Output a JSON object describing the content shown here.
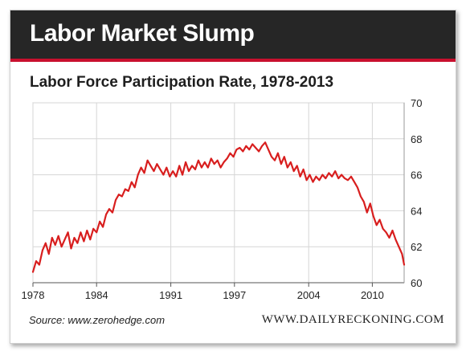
{
  "banner": {
    "title": "Labor Market Slump"
  },
  "footer": {
    "source": "Source: www.zerohedge.com",
    "brand": "WWW.DAILYRECKONING.COM"
  },
  "colors": {
    "line": "#d81e1e",
    "banner_bg": "#262626",
    "banner_accent": "#c8102e"
  },
  "chart_data": {
    "type": "line",
    "title": "Labor Force Participation Rate, 1978-2013",
    "xlabel": "",
    "ylabel": "",
    "xlim": [
      1978,
      2013
    ],
    "ylim": [
      60,
      70
    ],
    "x_ticks": [
      1978,
      1984,
      1991,
      1997,
      2004,
      2010
    ],
    "y_ticks": [
      60,
      62,
      64,
      66,
      68,
      70
    ],
    "y_axis_side": "right",
    "grid": true,
    "series": [
      {
        "x": [
          1978.0,
          1978.3,
          1978.6,
          1978.9,
          1979.2,
          1979.5,
          1979.8,
          1980.1,
          1980.4,
          1980.7,
          1981.0,
          1981.3,
          1981.6,
          1981.9,
          1982.2,
          1982.5,
          1982.8,
          1983.1,
          1983.4,
          1983.7,
          1984.0,
          1984.3,
          1984.6,
          1984.9,
          1985.2,
          1985.5,
          1985.8,
          1986.1,
          1986.4,
          1986.7,
          1987.0,
          1987.3,
          1987.6,
          1987.9,
          1988.2,
          1988.5,
          1988.8,
          1989.1,
          1989.4,
          1989.7,
          1990.0,
          1990.3,
          1990.6,
          1990.9,
          1991.2,
          1991.5,
          1991.8,
          1992.1,
          1992.4,
          1992.7,
          1993.0,
          1993.3,
          1993.6,
          1993.9,
          1994.2,
          1994.5,
          1994.8,
          1995.1,
          1995.4,
          1995.7,
          1996.0,
          1996.3,
          1996.6,
          1996.9,
          1997.2,
          1997.5,
          1997.8,
          1998.1,
          1998.4,
          1998.7,
          1999.0,
          1999.3,
          1999.6,
          1999.9,
          2000.2,
          2000.5,
          2000.8,
          2001.1,
          2001.4,
          2001.7,
          2002.0,
          2002.3,
          2002.6,
          2002.9,
          2003.2,
          2003.5,
          2003.8,
          2004.1,
          2004.4,
          2004.7,
          2005.0,
          2005.3,
          2005.6,
          2005.9,
          2006.2,
          2006.5,
          2006.8,
          2007.1,
          2007.4,
          2007.7,
          2008.0,
          2008.3,
          2008.6,
          2008.9,
          2009.2,
          2009.5,
          2009.8,
          2010.1,
          2010.4,
          2010.7,
          2011.0,
          2011.3,
          2011.6,
          2011.9,
          2012.2,
          2012.5,
          2012.8,
          2013.0
        ],
        "values": [
          60.6,
          61.2,
          61.0,
          61.8,
          62.2,
          61.6,
          62.5,
          62.1,
          62.6,
          62.0,
          62.4,
          62.8,
          61.9,
          62.5,
          62.2,
          62.8,
          62.3,
          62.9,
          62.4,
          63.0,
          62.8,
          63.4,
          63.1,
          63.8,
          64.1,
          63.9,
          64.6,
          64.9,
          64.8,
          65.2,
          65.1,
          65.6,
          65.3,
          66.0,
          66.4,
          66.1,
          66.8,
          66.5,
          66.2,
          66.6,
          66.3,
          66.0,
          66.4,
          65.9,
          66.2,
          65.9,
          66.5,
          66.0,
          66.7,
          66.2,
          66.5,
          66.3,
          66.8,
          66.4,
          66.7,
          66.4,
          66.9,
          66.6,
          66.8,
          66.4,
          66.7,
          66.9,
          67.2,
          67.0,
          67.4,
          67.5,
          67.3,
          67.6,
          67.4,
          67.7,
          67.5,
          67.3,
          67.6,
          67.8,
          67.4,
          67.0,
          66.8,
          67.2,
          66.6,
          67.0,
          66.4,
          66.7,
          66.2,
          66.5,
          65.9,
          66.3,
          65.7,
          66.0,
          65.6,
          65.9,
          65.7,
          66.0,
          65.8,
          66.1,
          65.9,
          66.2,
          65.8,
          66.0,
          65.8,
          65.7,
          65.9,
          65.6,
          65.3,
          64.8,
          64.5,
          63.9,
          64.4,
          63.7,
          63.2,
          63.5,
          63.0,
          62.8,
          62.5,
          62.9,
          62.4,
          62.0,
          61.6,
          61.0
        ]
      }
    ]
  }
}
